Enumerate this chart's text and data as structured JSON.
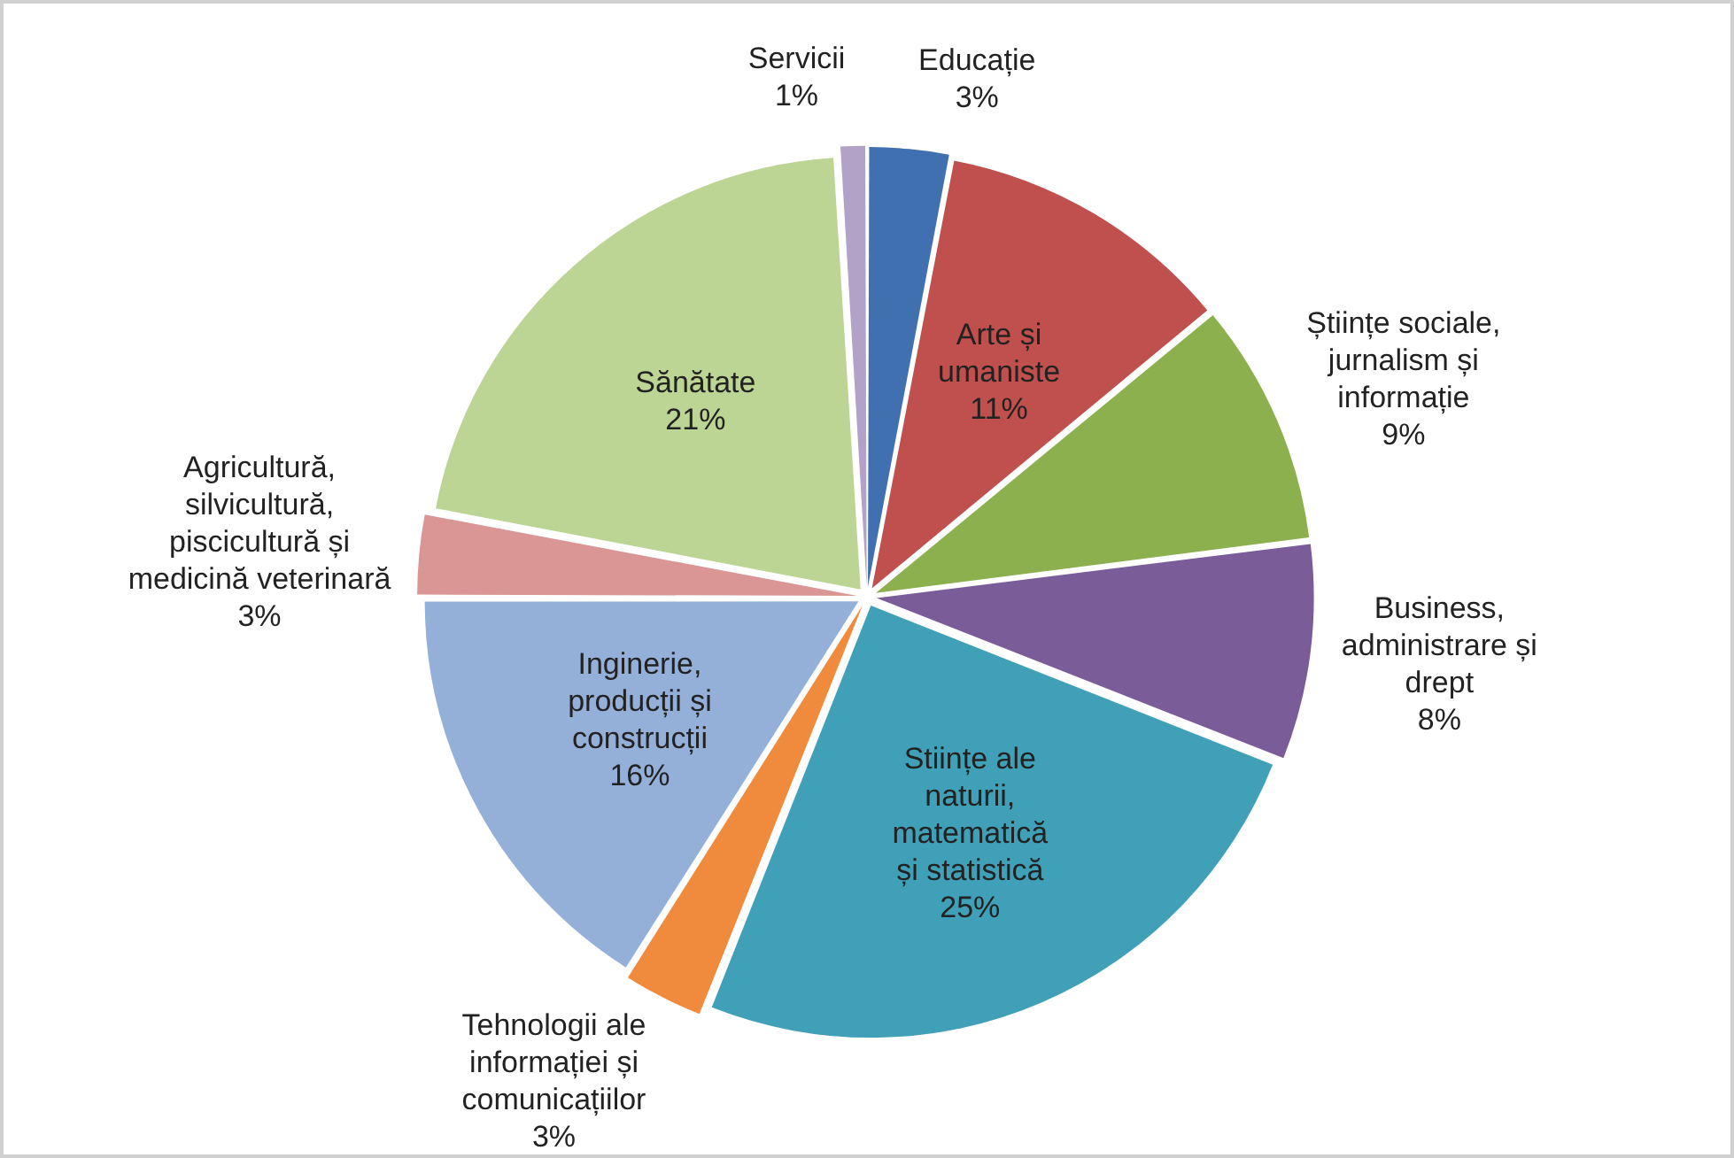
{
  "chart_data": {
    "type": "pie",
    "categories": [
      "Educație",
      "Arte și umaniste",
      "Științe sociale, jurnalism și informație",
      "Business, administrare și drept",
      "Stiințe ale naturii, matematică și statistică",
      "Tehnologii ale informației și comunicațiilor",
      "Inginerie, producții și construcții",
      "Agricultură, silvicultură, piscicultură și medicină veterinară",
      "Sănătate",
      "Servicii"
    ],
    "values": [
      3,
      11,
      9,
      8,
      25,
      3,
      16,
      3,
      21,
      1
    ],
    "value_labels": [
      "3%",
      "11%",
      "9%",
      "8%",
      "25%",
      "3%",
      "16%",
      "3%",
      "21%",
      "1%"
    ],
    "colors": [
      "#4170b0",
      "#c0504d",
      "#8cb04e",
      "#7a5c99",
      "#40a0b8",
      "#f08a3c",
      "#95b0d8",
      "#d99694",
      "#bcd494",
      "#b3a2c7"
    ],
    "legend": false
  }
}
